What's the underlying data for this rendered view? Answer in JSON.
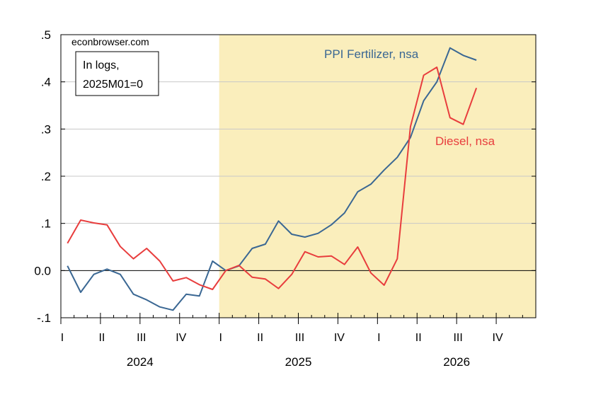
{
  "chart_data": {
    "type": "line",
    "source_label": "econbrowser.com",
    "note_lines": [
      "In logs,",
      "2025M01=0"
    ],
    "ylim": [
      -0.1,
      0.5
    ],
    "y_ticks": [
      {
        "value": 0.5,
        "label": ".5"
      },
      {
        "value": 0.4,
        "label": ".4"
      },
      {
        "value": 0.3,
        "label": ".3"
      },
      {
        "value": 0.2,
        "label": ".2"
      },
      {
        "value": 0.1,
        "label": ".1"
      },
      {
        "value": 0.0,
        "label": "0.0"
      },
      {
        "value": -0.1,
        "label": "-.1"
      }
    ],
    "x_start": "2024-01",
    "x_end": "2026-12",
    "quarter_ticks": [
      {
        "month": "2024-01",
        "label": "I"
      },
      {
        "month": "2024-04",
        "label": "II"
      },
      {
        "month": "2024-07",
        "label": "III"
      },
      {
        "month": "2024-10",
        "label": "IV"
      },
      {
        "month": "2025-01",
        "label": "I"
      },
      {
        "month": "2025-04",
        "label": "II"
      },
      {
        "month": "2025-07",
        "label": "III"
      },
      {
        "month": "2025-10",
        "label": "IV"
      },
      {
        "month": "2026-01",
        "label": "I"
      },
      {
        "month": "2026-04",
        "label": "II"
      },
      {
        "month": "2026-07",
        "label": "III"
      },
      {
        "month": "2026-10",
        "label": "IV"
      }
    ],
    "year_labels": [
      {
        "month": "2024-07",
        "label": "2024"
      },
      {
        "month": "2025-07",
        "label": "2025"
      },
      {
        "month": "2026-07",
        "label": "2026"
      }
    ],
    "shaded_region": {
      "from": "2025-01",
      "to": "2026-12",
      "color": "#faeebc"
    },
    "zero_line": true,
    "grid": true,
    "series": [
      {
        "name": "PPI Fertilizer, nsa",
        "color": "#3a6793",
        "start": "2024-01",
        "values": [
          0.01,
          -0.046,
          -0.008,
          0.003,
          -0.008,
          -0.05,
          -0.062,
          -0.077,
          -0.084,
          -0.05,
          -0.054,
          0.02,
          0.0,
          0.01,
          0.047,
          0.056,
          0.105,
          0.077,
          0.071,
          0.079,
          0.097,
          0.122,
          0.167,
          0.183,
          0.213,
          0.24,
          0.282,
          0.36,
          0.4,
          0.472,
          0.456,
          0.446
        ]
      },
      {
        "name": "Diesel, nsa",
        "color": "#e83d3d",
        "start": "2024-01",
        "values": [
          0.058,
          0.107,
          0.101,
          0.097,
          0.051,
          0.025,
          0.047,
          0.02,
          -0.022,
          -0.015,
          -0.03,
          -0.04,
          0.0,
          0.011,
          -0.014,
          -0.018,
          -0.038,
          -0.008,
          0.04,
          0.029,
          0.031,
          0.013,
          0.05,
          -0.005,
          -0.031,
          0.025,
          0.305,
          0.414,
          0.431,
          0.324,
          0.31,
          0.387
        ]
      }
    ]
  }
}
